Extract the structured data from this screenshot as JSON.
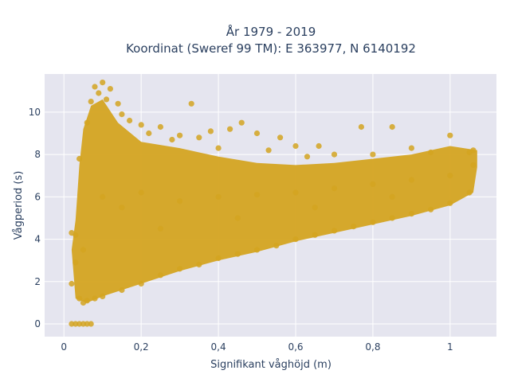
{
  "chart_data": {
    "type": "scatter",
    "title_line1": "År 1979 - 2019",
    "title_line2": "Koordinat (Sweref 99 TM): E 363977, N 6140192",
    "xlabel": "Signifikant våghöjd (m)",
    "ylabel": "Vågperiod (s)",
    "xlim": [
      -0.05,
      1.12
    ],
    "ylim": [
      -0.6,
      11.8
    ],
    "x_ticks": [
      0,
      0.2,
      0.4,
      0.6,
      0.8,
      1
    ],
    "x_tick_labels": [
      "0",
      "0,2",
      "0,4",
      "0,6",
      "0,8",
      "1"
    ],
    "y_ticks": [
      0,
      2,
      4,
      6,
      8,
      10
    ],
    "y_tick_labels": [
      "0",
      "2",
      "4",
      "6",
      "8",
      "10"
    ],
    "grid": true,
    "marker_color": "#D4A421",
    "background_color": "#E5E5EF",
    "series": [
      {
        "points": [
          [
            0.02,
            1.9
          ],
          [
            0.03,
            2.9
          ],
          [
            0.04,
            7.8
          ],
          [
            0.05,
            3.5
          ],
          [
            0.06,
            9.5
          ],
          [
            0.07,
            10.5
          ],
          [
            0.08,
            11.2
          ],
          [
            0.09,
            10.9
          ],
          [
            0.1,
            11.4
          ],
          [
            0.11,
            10.6
          ],
          [
            0.12,
            11.1
          ],
          [
            0.14,
            10.4
          ],
          [
            0.15,
            9.9
          ],
          [
            0.17,
            9.6
          ],
          [
            0.2,
            9.4
          ],
          [
            0.22,
            9.0
          ],
          [
            0.25,
            9.3
          ],
          [
            0.28,
            8.7
          ],
          [
            0.3,
            8.9
          ],
          [
            0.33,
            10.4
          ],
          [
            0.35,
            8.8
          ],
          [
            0.38,
            9.1
          ],
          [
            0.4,
            8.3
          ],
          [
            0.43,
            9.2
          ],
          [
            0.46,
            9.5
          ],
          [
            0.5,
            9.0
          ],
          [
            0.53,
            8.2
          ],
          [
            0.56,
            8.8
          ],
          [
            0.6,
            8.4
          ],
          [
            0.63,
            7.9
          ],
          [
            0.66,
            8.4
          ],
          [
            0.7,
            8.0
          ],
          [
            0.77,
            9.3
          ],
          [
            0.8,
            8.0
          ],
          [
            0.85,
            9.3
          ],
          [
            0.9,
            8.3
          ],
          [
            0.95,
            8.1
          ],
          [
            1.0,
            8.9
          ],
          [
            1.05,
            8.1
          ],
          [
            0.02,
            0.0
          ],
          [
            0.03,
            0.0
          ],
          [
            0.04,
            0.0
          ],
          [
            0.05,
            0.0
          ],
          [
            0.06,
            0.0
          ],
          [
            0.07,
            0.0
          ],
          [
            0.02,
            4.3
          ],
          [
            0.03,
            4.2
          ],
          [
            0.04,
            1.2
          ],
          [
            0.05,
            1.0
          ],
          [
            0.06,
            1.1
          ],
          [
            0.08,
            1.2
          ],
          [
            0.1,
            1.3
          ],
          [
            0.15,
            1.6
          ],
          [
            0.2,
            1.9
          ],
          [
            0.25,
            2.3
          ],
          [
            0.3,
            2.6
          ],
          [
            0.35,
            2.8
          ],
          [
            0.4,
            3.1
          ],
          [
            0.45,
            3.3
          ],
          [
            0.5,
            3.5
          ],
          [
            0.55,
            3.7
          ],
          [
            0.6,
            4.0
          ],
          [
            0.65,
            4.2
          ],
          [
            0.7,
            4.4
          ],
          [
            0.75,
            4.6
          ],
          [
            0.8,
            4.8
          ],
          [
            0.85,
            5.0
          ],
          [
            0.9,
            5.2
          ],
          [
            0.95,
            5.4
          ],
          [
            1.0,
            5.7
          ],
          [
            1.05,
            6.2
          ],
          [
            1.06,
            7.5
          ],
          [
            1.06,
            8.2
          ],
          [
            0.1,
            6.0
          ],
          [
            0.15,
            5.5
          ],
          [
            0.2,
            6.2
          ],
          [
            0.3,
            5.8
          ],
          [
            0.4,
            6.0
          ],
          [
            0.5,
            6.1
          ],
          [
            0.6,
            6.2
          ],
          [
            0.7,
            6.4
          ],
          [
            0.8,
            6.6
          ],
          [
            0.9,
            6.8
          ],
          [
            1.0,
            7.0
          ],
          [
            0.25,
            4.5
          ],
          [
            0.45,
            5.0
          ],
          [
            0.65,
            5.5
          ],
          [
            0.85,
            6.0
          ]
        ]
      }
    ]
  }
}
